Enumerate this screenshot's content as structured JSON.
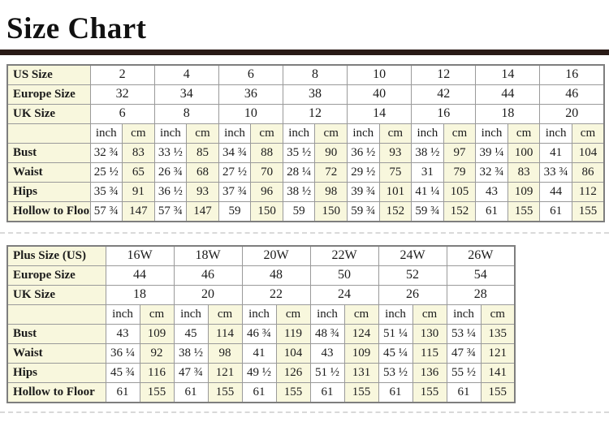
{
  "page": {
    "title": "Size Chart",
    "accent_bar_color": "#2a1b17",
    "cream_color": "#f8f7dd",
    "border_color": "#9a9a9a"
  },
  "unit_labels": [
    "inch",
    "cm"
  ],
  "standard_table": {
    "size_rows": [
      {
        "label": "US Size",
        "values": [
          "2",
          "4",
          "6",
          "8",
          "10",
          "12",
          "14",
          "16"
        ]
      },
      {
        "label": "Europe Size",
        "values": [
          "32",
          "34",
          "36",
          "38",
          "40",
          "42",
          "44",
          "46"
        ]
      },
      {
        "label": "UK Size",
        "values": [
          "6",
          "8",
          "10",
          "12",
          "14",
          "16",
          "18",
          "20"
        ]
      }
    ],
    "measure_rows": [
      {
        "label": "Bust",
        "values": [
          "32 ¾",
          "83",
          "33 ½",
          "85",
          "34 ¾",
          "88",
          "35 ½",
          "90",
          "36 ½",
          "93",
          "38 ½",
          "97",
          "39 ¼",
          "100",
          "41",
          "104"
        ]
      },
      {
        "label": "Waist",
        "values": [
          "25 ½",
          "65",
          "26 ¾",
          "68",
          "27 ½",
          "70",
          "28 ¼",
          "72",
          "29 ½",
          "75",
          "31",
          "79",
          "32 ¾",
          "83",
          "33 ¾",
          "86"
        ]
      },
      {
        "label": "Hips",
        "values": [
          "35 ¾",
          "91",
          "36 ½",
          "93",
          "37 ¾",
          "96",
          "38 ½",
          "98",
          "39 ¾",
          "101",
          "41 ¼",
          "105",
          "43",
          "109",
          "44",
          "112"
        ]
      },
      {
        "label": "Hollow to Floor",
        "values": [
          "57 ¾",
          "147",
          "57 ¾",
          "147",
          "59",
          "150",
          "59",
          "150",
          "59 ¾",
          "152",
          "59 ¾",
          "152",
          "61",
          "155",
          "61",
          "155"
        ]
      }
    ]
  },
  "plus_table": {
    "size_rows": [
      {
        "label": "Plus Size (US)",
        "values": [
          "16W",
          "18W",
          "20W",
          "22W",
          "24W",
          "26W"
        ]
      },
      {
        "label": "Europe Size",
        "values": [
          "44",
          "46",
          "48",
          "50",
          "52",
          "54"
        ]
      },
      {
        "label": "UK Size",
        "values": [
          "18",
          "20",
          "22",
          "24",
          "26",
          "28"
        ]
      }
    ],
    "measure_rows": [
      {
        "label": "Bust",
        "values": [
          "43",
          "109",
          "45",
          "114",
          "46 ¾",
          "119",
          "48 ¾",
          "124",
          "51 ¼",
          "130",
          "53 ¼",
          "135"
        ]
      },
      {
        "label": "Waist",
        "values": [
          "36 ¼",
          "92",
          "38 ½",
          "98",
          "41",
          "104",
          "43",
          "109",
          "45 ¼",
          "115",
          "47 ¾",
          "121"
        ]
      },
      {
        "label": "Hips",
        "values": [
          "45 ¾",
          "116",
          "47 ¾",
          "121",
          "49 ½",
          "126",
          "51 ½",
          "131",
          "53 ½",
          "136",
          "55 ½",
          "141"
        ]
      },
      {
        "label": "Hollow to Floor",
        "values": [
          "61",
          "155",
          "61",
          "155",
          "61",
          "155",
          "61",
          "155",
          "61",
          "155",
          "61",
          "155"
        ]
      }
    ]
  }
}
